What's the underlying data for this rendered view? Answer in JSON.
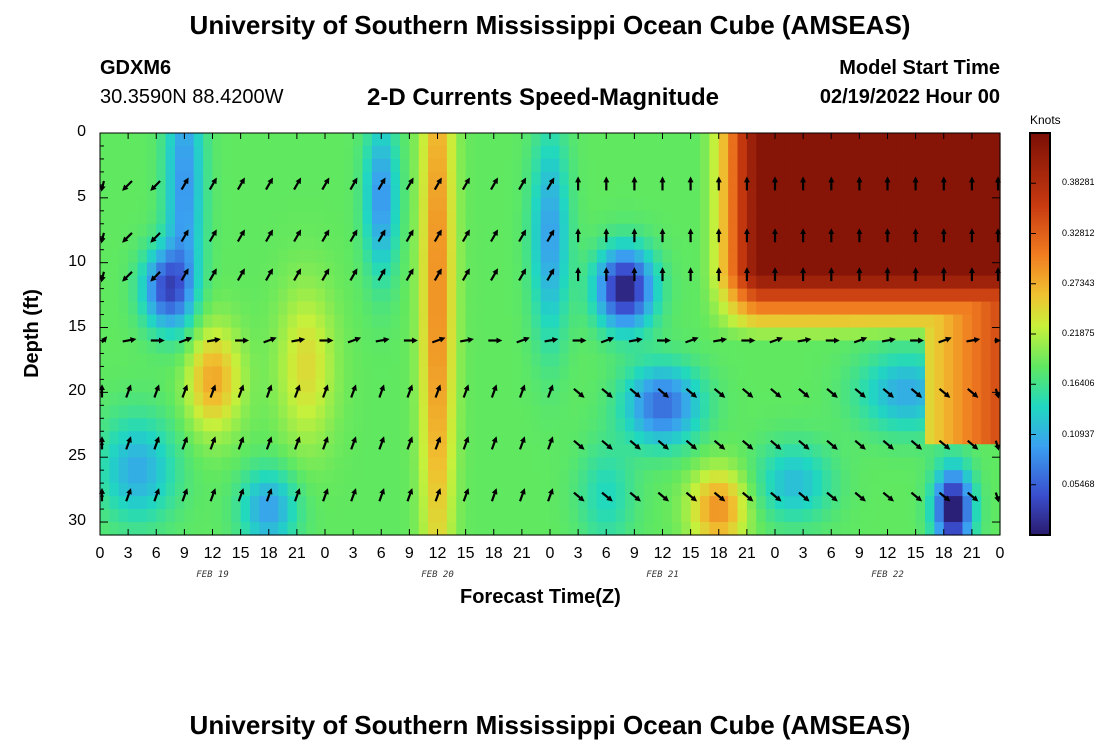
{
  "header": {
    "title": "University of Southern Mississippi Ocean Cube (AMSEAS)",
    "station": "GDXM6",
    "coords": "30.3590N  88.4200W",
    "product": "2-D Currents Speed-Magnitude",
    "model_start_label": "Model Start Time",
    "model_start_value": "02/19/2022 Hour 00"
  },
  "footer": {
    "title": "University of Southern Mississippi Ocean Cube (AMSEAS)"
  },
  "colors": {
    "low": "#2a1b6e",
    "mid": "#c8f03a",
    "high": "#7a0e05"
  },
  "chart_data": {
    "type": "heatmap",
    "title": "2-D Currents Speed-Magnitude",
    "xlabel": "Forecast Time(Z)",
    "ylabel": "Depth (ft)",
    "x_tick_labels": [
      "0",
      "3",
      "6",
      "9",
      "12",
      "15",
      "18",
      "21",
      "0",
      "3",
      "6",
      "9",
      "12",
      "15",
      "18",
      "21",
      "0",
      "3",
      "6",
      "9",
      "12",
      "15",
      "18",
      "21",
      "0",
      "3",
      "6",
      "9",
      "12",
      "15",
      "18",
      "21",
      "0"
    ],
    "date_labels": [
      "FEB 19",
      "FEB 20",
      "FEB 21",
      "FEB 22"
    ],
    "y_ticks": [
      0,
      5,
      10,
      15,
      20,
      25,
      30
    ],
    "ylim": [
      0,
      31
    ],
    "x_range_hours": [
      0,
      96
    ],
    "colorbar": {
      "label": "Knots",
      "ticks": [
        "0.38281",
        "0.32812",
        "0.27343",
        "0.21875",
        "0.16406",
        "0.10937",
        "0.05468"
      ],
      "range": [
        0,
        0.4375
      ]
    },
    "arrow_depths_ft": [
      4,
      8,
      11,
      16,
      20,
      24,
      28
    ],
    "arrow_times_hours": [
      0,
      3,
      6,
      9,
      12,
      15,
      18,
      21,
      24,
      27,
      30,
      33,
      36,
      39,
      42,
      45,
      48,
      51,
      54,
      57,
      60,
      63,
      66,
      69,
      72,
      75,
      78,
      81,
      84,
      87,
      90,
      93,
      96
    ]
  }
}
